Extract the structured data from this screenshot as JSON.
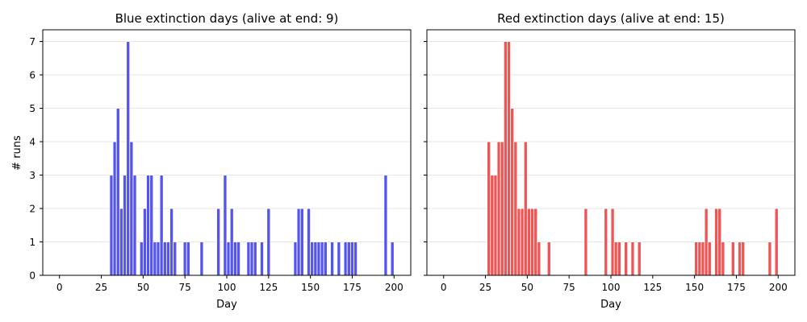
{
  "chart_data": [
    {
      "type": "bar",
      "title": "Blue extinction days (alive at end: 9)",
      "xlabel": "Day",
      "ylabel": "# runs",
      "xlim": [
        -10,
        210
      ],
      "ylim": [
        0,
        7.35
      ],
      "xticks": [
        0,
        25,
        50,
        75,
        100,
        125,
        150,
        175,
        200
      ],
      "yticks": [
        0,
        1,
        2,
        3,
        4,
        5,
        6,
        7
      ],
      "grid": "horizontal",
      "color": "#5555ee",
      "bin_width": 2,
      "bins": [
        {
          "x": 31,
          "count": 3
        },
        {
          "x": 33,
          "count": 4
        },
        {
          "x": 35,
          "count": 5
        },
        {
          "x": 37,
          "count": 2
        },
        {
          "x": 39,
          "count": 3
        },
        {
          "x": 41,
          "count": 7
        },
        {
          "x": 43,
          "count": 4
        },
        {
          "x": 45,
          "count": 3
        },
        {
          "x": 49,
          "count": 1
        },
        {
          "x": 51,
          "count": 2
        },
        {
          "x": 53,
          "count": 3
        },
        {
          "x": 55,
          "count": 3
        },
        {
          "x": 57,
          "count": 1
        },
        {
          "x": 59,
          "count": 1
        },
        {
          "x": 61,
          "count": 3
        },
        {
          "x": 63,
          "count": 1
        },
        {
          "x": 65,
          "count": 1
        },
        {
          "x": 67,
          "count": 2
        },
        {
          "x": 69,
          "count": 1
        },
        {
          "x": 75,
          "count": 1
        },
        {
          "x": 77,
          "count": 1
        },
        {
          "x": 85,
          "count": 1
        },
        {
          "x": 95,
          "count": 2
        },
        {
          "x": 99,
          "count": 3
        },
        {
          "x": 101,
          "count": 1
        },
        {
          "x": 103,
          "count": 2
        },
        {
          "x": 105,
          "count": 1
        },
        {
          "x": 107,
          "count": 1
        },
        {
          "x": 113,
          "count": 1
        },
        {
          "x": 115,
          "count": 1
        },
        {
          "x": 117,
          "count": 1
        },
        {
          "x": 121,
          "count": 1
        },
        {
          "x": 125,
          "count": 2
        },
        {
          "x": 141,
          "count": 1
        },
        {
          "x": 143,
          "count": 2
        },
        {
          "x": 145,
          "count": 2
        },
        {
          "x": 149,
          "count": 2
        },
        {
          "x": 151,
          "count": 1
        },
        {
          "x": 153,
          "count": 1
        },
        {
          "x": 155,
          "count": 1
        },
        {
          "x": 157,
          "count": 1
        },
        {
          "x": 159,
          "count": 1
        },
        {
          "x": 163,
          "count": 1
        },
        {
          "x": 167,
          "count": 1
        },
        {
          "x": 171,
          "count": 1
        },
        {
          "x": 173,
          "count": 1
        },
        {
          "x": 175,
          "count": 1
        },
        {
          "x": 177,
          "count": 1
        },
        {
          "x": 195,
          "count": 3
        },
        {
          "x": 199,
          "count": 1
        }
      ]
    },
    {
      "type": "bar",
      "title": "Red extinction days (alive at end: 15)",
      "xlabel": "Day",
      "ylabel": "",
      "xlim": [
        -10,
        210
      ],
      "ylim": [
        0,
        7.35
      ],
      "xticks": [
        0,
        25,
        50,
        75,
        100,
        125,
        150,
        175,
        200
      ],
      "yticks": [
        0,
        1,
        2,
        3,
        4,
        5,
        6,
        7
      ],
      "grid": "horizontal",
      "color": "#ee5555",
      "bin_width": 2,
      "bins": [
        {
          "x": 27,
          "count": 4
        },
        {
          "x": 29,
          "count": 3
        },
        {
          "x": 31,
          "count": 3
        },
        {
          "x": 33,
          "count": 4
        },
        {
          "x": 35,
          "count": 4
        },
        {
          "x": 37,
          "count": 7
        },
        {
          "x": 39,
          "count": 7
        },
        {
          "x": 41,
          "count": 5
        },
        {
          "x": 43,
          "count": 4
        },
        {
          "x": 45,
          "count": 2
        },
        {
          "x": 47,
          "count": 2
        },
        {
          "x": 49,
          "count": 4
        },
        {
          "x": 51,
          "count": 2
        },
        {
          "x": 53,
          "count": 2
        },
        {
          "x": 55,
          "count": 2
        },
        {
          "x": 57,
          "count": 1
        },
        {
          "x": 63,
          "count": 1
        },
        {
          "x": 85,
          "count": 2
        },
        {
          "x": 97,
          "count": 2
        },
        {
          "x": 101,
          "count": 2
        },
        {
          "x": 103,
          "count": 1
        },
        {
          "x": 105,
          "count": 1
        },
        {
          "x": 109,
          "count": 1
        },
        {
          "x": 113,
          "count": 1
        },
        {
          "x": 117,
          "count": 1
        },
        {
          "x": 151,
          "count": 1
        },
        {
          "x": 153,
          "count": 1
        },
        {
          "x": 155,
          "count": 1
        },
        {
          "x": 157,
          "count": 2
        },
        {
          "x": 159,
          "count": 1
        },
        {
          "x": 163,
          "count": 2
        },
        {
          "x": 165,
          "count": 2
        },
        {
          "x": 167,
          "count": 1
        },
        {
          "x": 173,
          "count": 1
        },
        {
          "x": 177,
          "count": 1
        },
        {
          "x": 179,
          "count": 1
        },
        {
          "x": 195,
          "count": 1
        },
        {
          "x": 199,
          "count": 2
        }
      ]
    }
  ]
}
